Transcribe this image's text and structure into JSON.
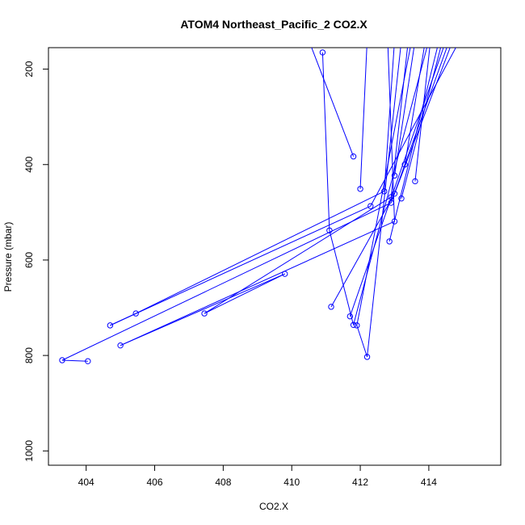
{
  "chart_data": {
    "type": "line",
    "title": "ATOM4 Northeast_Pacific_2 CO2.X",
    "xlabel": "CO2.X",
    "ylabel": "Pressure (mbar)",
    "xlim": [
      402.9,
      416.1
    ],
    "ylim": [
      1030,
      155
    ],
    "y_inverted": true,
    "x_ticks": [
      404,
      406,
      408,
      410,
      412,
      414
    ],
    "y_ticks": [
      200,
      400,
      600,
      800,
      1000
    ],
    "line_color": "#0000ff",
    "marker": "open-circle",
    "series": [
      {
        "points": [
          [
            410.9,
            165
          ],
          [
            411.8,
            383
          ],
          [
            412.0,
            451
          ],
          [
            412.7,
            456
          ],
          [
            412.9,
            468
          ],
          [
            413.0,
            423
          ],
          [
            413.3,
            400
          ],
          [
            413.6,
            435
          ],
          [
            413.2,
            471
          ],
          [
            413.0,
            461
          ],
          [
            412.3,
            487
          ],
          [
            412.9,
            480
          ],
          [
            413.0,
            519
          ],
          [
            412.85,
            561
          ],
          [
            411.1,
            538
          ],
          [
            411.9,
            737
          ],
          [
            411.8,
            736
          ],
          [
            411.7,
            718
          ],
          [
            412.2,
            803
          ],
          [
            411.15,
            698
          ],
          [
            409.8,
            629
          ],
          [
            407.45,
            712
          ],
          [
            405.45,
            712
          ],
          [
            404.7,
            737
          ],
          [
            405.0,
            779
          ],
          [
            404.05,
            812
          ],
          [
            403.3,
            810
          ]
        ],
        "connections": [
          [
            [
              410.9,
              165
            ],
            [
              411.1,
              538
            ]
          ],
          [
            [
              411.8,
              383
            ],
            [
              410.5,
              140
            ]
          ],
          [
            [
              412.0,
              451
            ],
            [
              412.2,
              140
            ]
          ],
          [
            [
              412.7,
              456
            ],
            [
              413.0,
              140
            ]
          ],
          [
            [
              412.9,
              468
            ],
            [
              413.4,
              140
            ]
          ],
          [
            [
              413.0,
              423
            ],
            [
              413.6,
              140
            ]
          ],
          [
            [
              413.3,
              400
            ],
            [
              413.9,
              140
            ]
          ],
          [
            [
              413.6,
              435
            ],
            [
              414.05,
              140
            ]
          ],
          [
            [
              413.2,
              471
            ],
            [
              414.4,
              140
            ]
          ],
          [
            [
              413.0,
              461
            ],
            [
              414.7,
              140
            ]
          ],
          [
            [
              412.3,
              487
            ],
            [
              414.9,
              140
            ]
          ],
          [
            [
              412.9,
              480
            ],
            [
              414.6,
              140
            ]
          ],
          [
            [
              413.0,
              519
            ],
            [
              412.8,
              140
            ]
          ],
          [
            [
              412.85,
              561
            ],
            [
              414.3,
              140
            ]
          ],
          [
            [
              411.1,
              538
            ],
            [
              411.8,
              736
            ]
          ],
          [
            [
              411.9,
              737
            ],
            [
              413.5,
              140
            ]
          ],
          [
            [
              411.8,
              736
            ],
            [
              414.0,
              140
            ]
          ],
          [
            [
              411.7,
              718
            ],
            [
              414.5,
              140
            ]
          ],
          [
            [
              412.2,
              803
            ],
            [
              411.9,
              737
            ]
          ],
          [
            [
              412.2,
              803
            ],
            [
              413.2,
              140
            ]
          ],
          [
            [
              411.15,
              698
            ],
            [
              413.0,
              461
            ]
          ],
          [
            [
              409.8,
              629
            ],
            [
              407.45,
              712
            ]
          ],
          [
            [
              407.45,
              712
            ],
            [
              412.9,
              468
            ]
          ],
          [
            [
              405.45,
              712
            ],
            [
              404.7,
              737
            ]
          ],
          [
            [
              404.7,
              737
            ],
            [
              412.3,
              487
            ]
          ],
          [
            [
              405.0,
              779
            ],
            [
              413.0,
              519
            ]
          ],
          [
            [
              404.05,
              812
            ],
            [
              403.3,
              810
            ]
          ],
          [
            [
              403.3,
              810
            ],
            [
              412.9,
              480
            ]
          ],
          [
            [
              405.0,
              779
            ],
            [
              409.8,
              629
            ]
          ],
          [
            [
              405.45,
              712
            ],
            [
              412.7,
              456
            ]
          ]
        ]
      }
    ]
  }
}
